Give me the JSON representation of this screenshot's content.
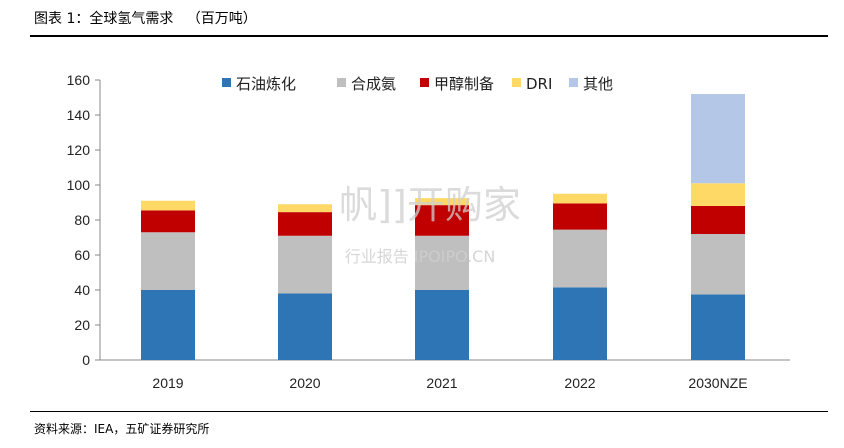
{
  "header": {
    "title": "图表 1：全球氢气需求   （百万吨）"
  },
  "footer": {
    "source": "资料来源：IEA，五矿证券研究所"
  },
  "watermark": {
    "line1": "帆]]开购家",
    "line2": "行业报告 IPOIPO.CN"
  },
  "chart_data": {
    "type": "bar",
    "stacked": true,
    "title": "",
    "xlabel": "",
    "ylabel": "",
    "ylim": [
      0,
      160
    ],
    "yticks": [
      0,
      20,
      40,
      60,
      80,
      100,
      120,
      140,
      160
    ],
    "grid": false,
    "legend_position": "top",
    "categories": [
      "2019",
      "2020",
      "2021",
      "2022",
      "2030NZE"
    ],
    "series": [
      {
        "name": "石油炼化",
        "color": "#2e75b6",
        "values": [
          40,
          38,
          40,
          41.5,
          37.5
        ]
      },
      {
        "name": "合成氨",
        "color": "#bfbfbf",
        "values": [
          33,
          33,
          31,
          33,
          34.5
        ]
      },
      {
        "name": "甲醇制备",
        "color": "#c00000",
        "values": [
          12.5,
          13.5,
          17.5,
          15,
          16
        ]
      },
      {
        "name": "DRI",
        "color": "#ffd966",
        "values": [
          5.5,
          4.5,
          4,
          5.5,
          13
        ]
      },
      {
        "name": "其他",
        "color": "#b4c7e7",
        "values": [
          0,
          0,
          0,
          0,
          51
        ]
      }
    ]
  }
}
